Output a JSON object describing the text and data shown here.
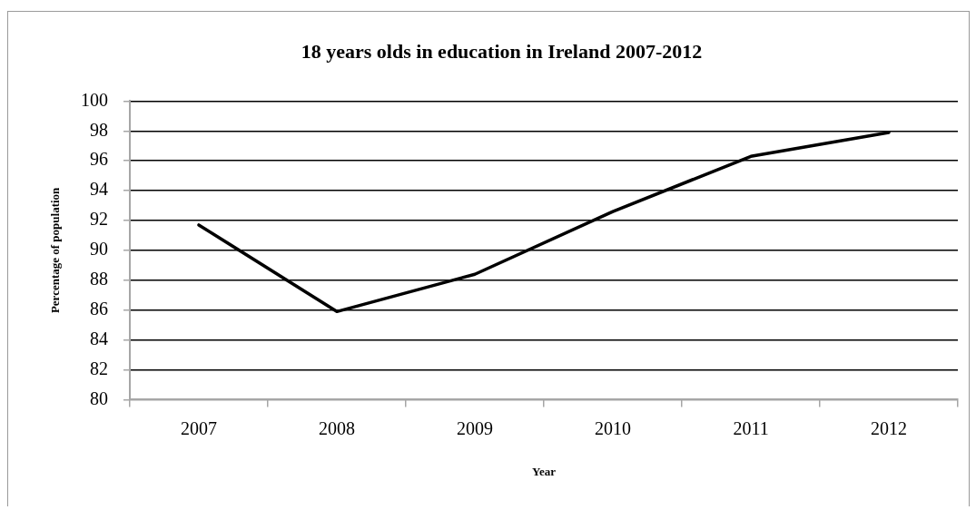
{
  "chart_data": {
    "type": "line",
    "title": "18 years olds in education in Ireland 2007-2012",
    "xlabel": "Year",
    "ylabel": "Percentage of population",
    "categories": [
      "2007",
      "2008",
      "2009",
      "2010",
      "2011",
      "2012"
    ],
    "values": [
      91.7,
      85.9,
      88.4,
      92.6,
      96.3,
      97.9
    ],
    "color": "#000000",
    "ylim": [
      80,
      100
    ],
    "yticks": [
      80,
      82,
      84,
      86,
      88,
      90,
      92,
      94,
      96,
      98,
      100
    ],
    "grid": "y",
    "marker": "none",
    "line_style": "solid"
  }
}
